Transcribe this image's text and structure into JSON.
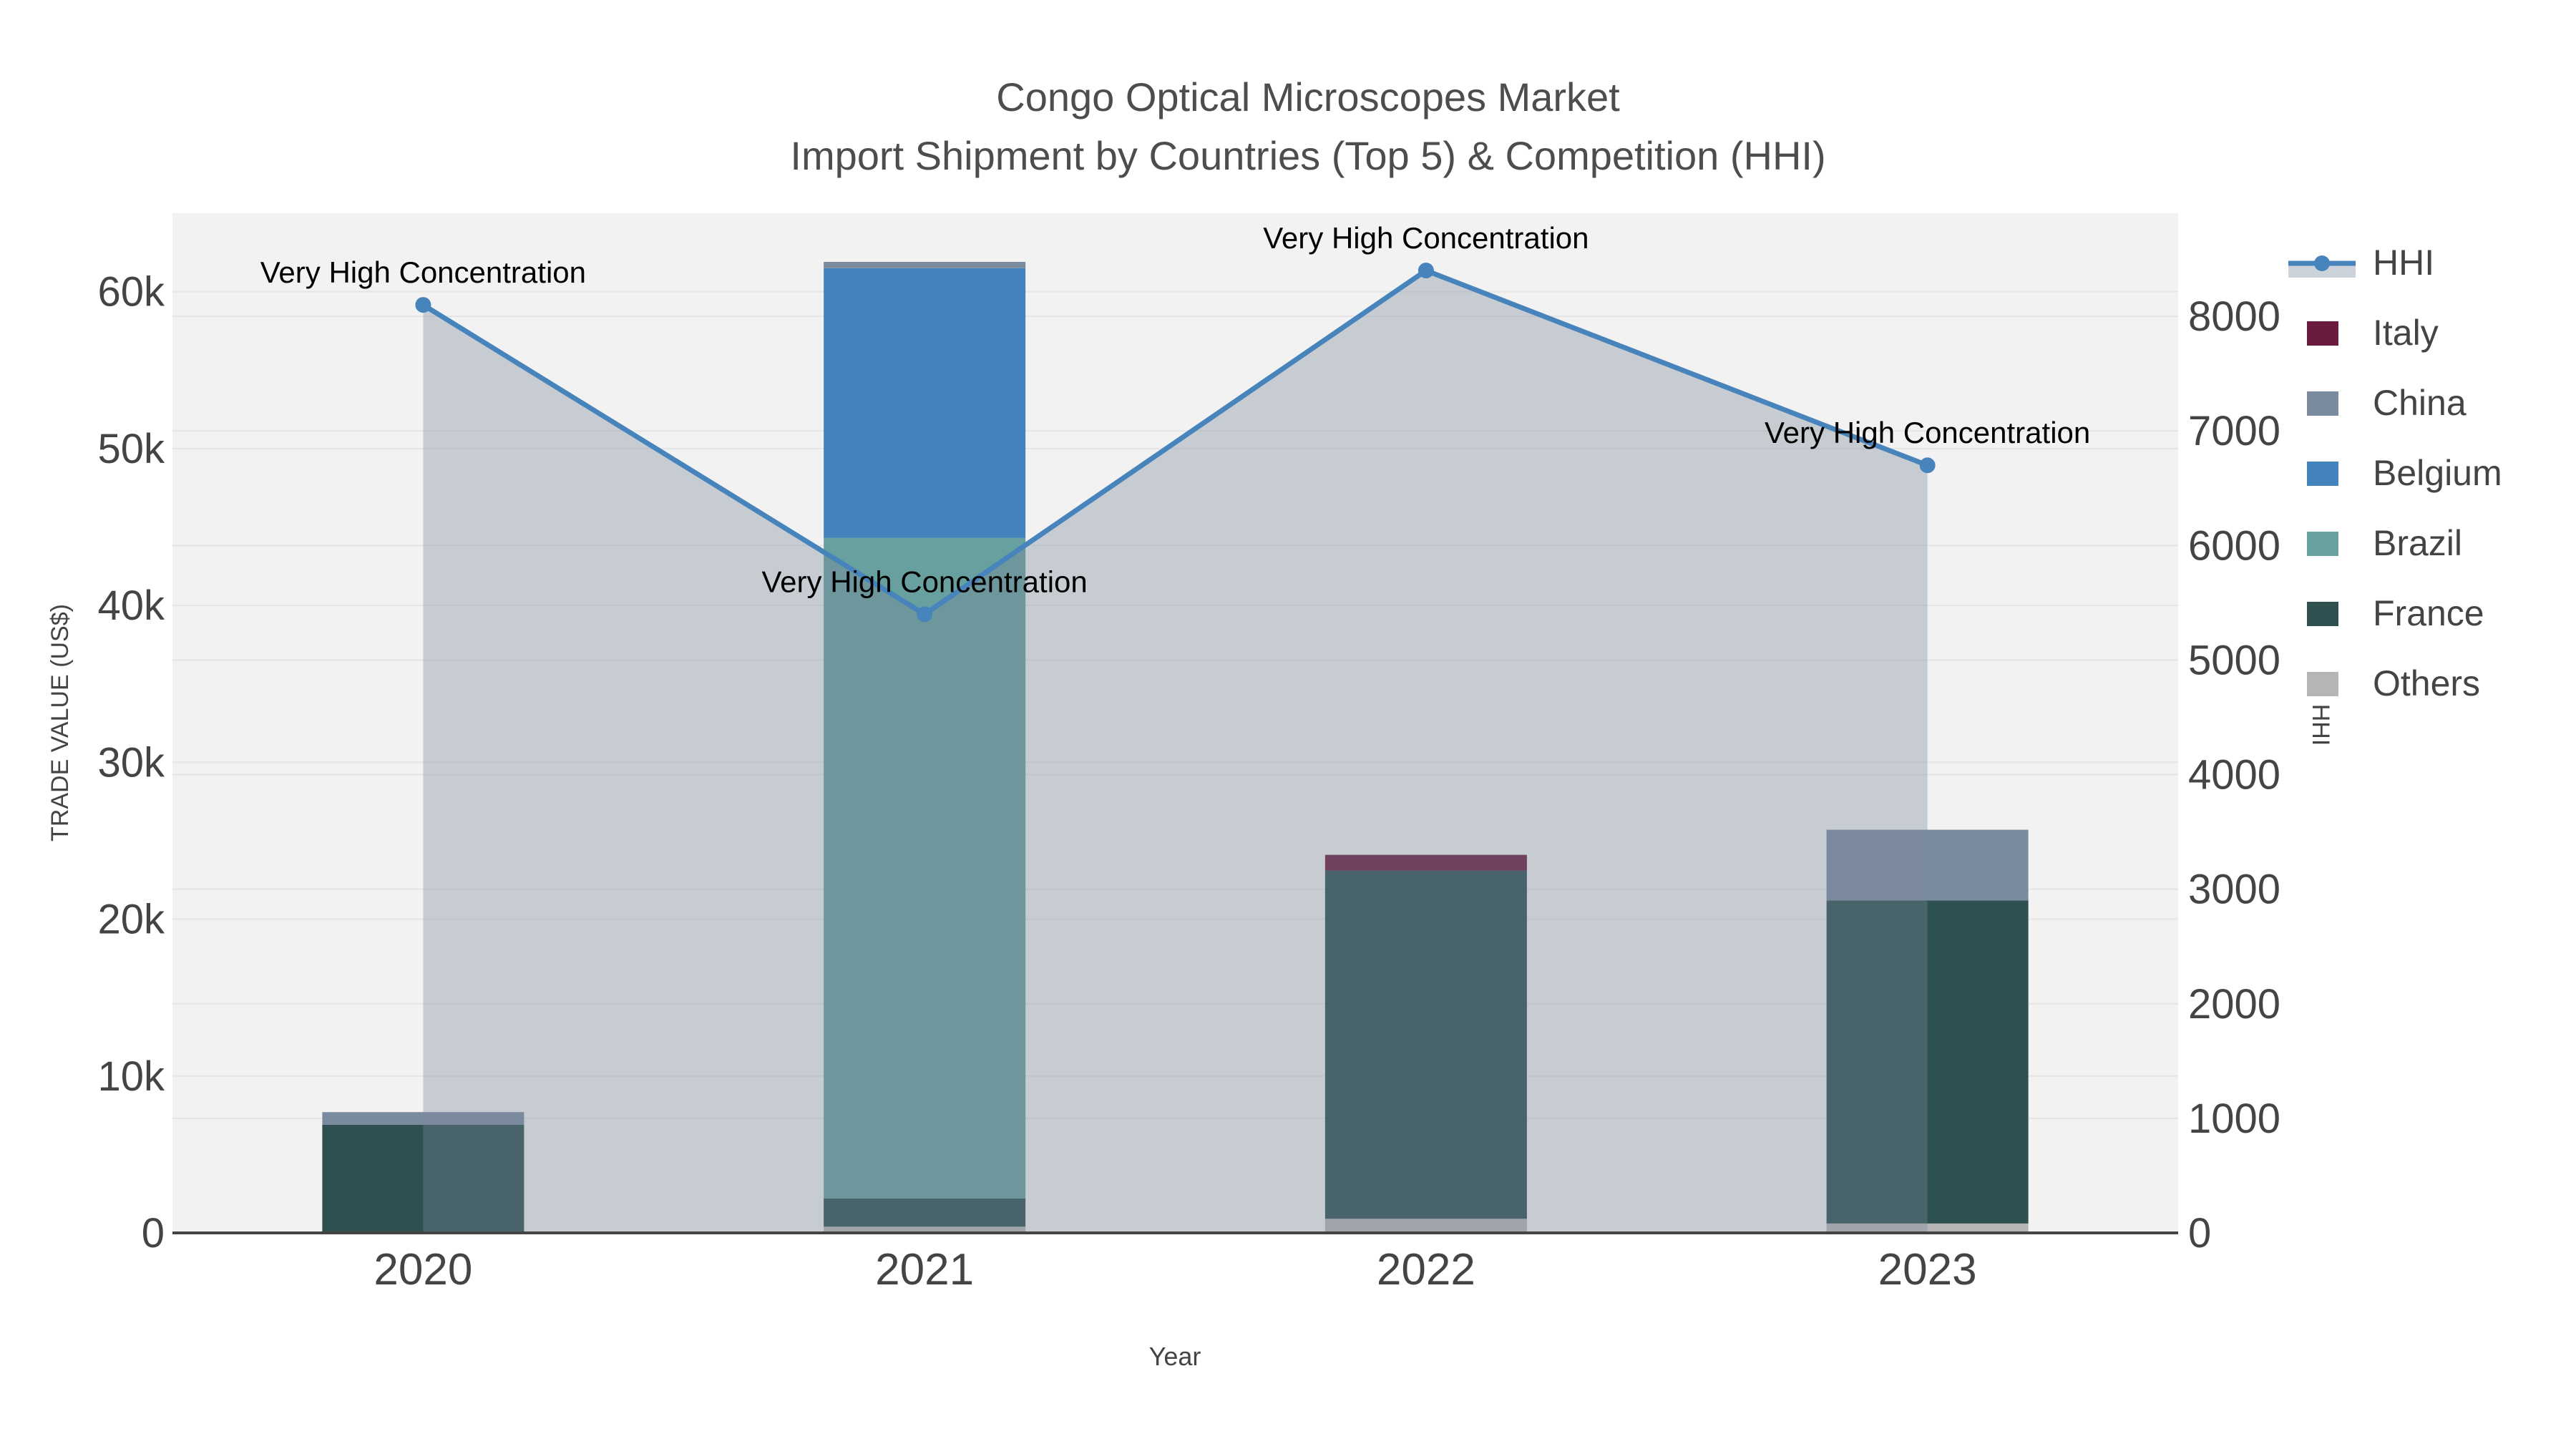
{
  "title": {
    "line1": "Congo Optical Microscopes Market",
    "line2": "Import Shipment by Countries (Top 5) & Competition (HHI)"
  },
  "axes": {
    "x": {
      "title": "Year",
      "tick_labels": [
        "2020",
        "2021",
        "2022",
        "2023"
      ]
    },
    "left": {
      "title": "TRADE VALUE (US$)",
      "tick_labels": [
        "0",
        "10k",
        "20k",
        "30k",
        "40k",
        "50k",
        "60k"
      ],
      "tick_values": [
        0,
        10000,
        20000,
        30000,
        40000,
        50000,
        60000
      ],
      "max": 65000
    },
    "right": {
      "title": "HHI",
      "tick_labels": [
        "0",
        "1000",
        "2000",
        "3000",
        "4000",
        "5000",
        "6000",
        "7000",
        "8000"
      ],
      "tick_values": [
        0,
        1000,
        2000,
        3000,
        4000,
        5000,
        6000,
        7000,
        8000
      ],
      "max": 8900
    }
  },
  "chart_data": {
    "type": "combo: stacked bar (left axis) + line with area fill (right axis)",
    "categories": [
      "2020",
      "2021",
      "2022",
      "2023"
    ],
    "stack_order_bottom_to_top": [
      "Others",
      "France",
      "Brazil",
      "Belgium",
      "China",
      "Italy"
    ],
    "series": [
      {
        "name": "Italy",
        "type": "bar",
        "color": "#6b1c3e",
        "values": [
          0,
          0,
          1000,
          0
        ]
      },
      {
        "name": "China",
        "type": "bar",
        "color": "#7b8b9e",
        "values": [
          800,
          400,
          0,
          4500
        ]
      },
      {
        "name": "Belgium",
        "type": "bar",
        "color": "#4484be",
        "values": [
          0,
          17200,
          0,
          0
        ]
      },
      {
        "name": "Brazil",
        "type": "bar",
        "color": "#67a09f",
        "values": [
          0,
          42100,
          0,
          0
        ]
      },
      {
        "name": "France",
        "type": "bar",
        "color": "#2e5051",
        "values": [
          6900,
          1800,
          22200,
          20600
        ]
      },
      {
        "name": "Others",
        "type": "bar",
        "color": "#b5b5b5",
        "values": [
          0,
          400,
          900,
          600
        ]
      }
    ],
    "line_series": {
      "name": "HHI",
      "axis": "right",
      "color": "#4784bc",
      "area_fill": "rgba(120,135,155,0.35)",
      "values": [
        8100,
        5400,
        8400,
        6700
      ]
    },
    "annotations": [
      {
        "text": "Very High Concentration",
        "category": "2020",
        "value": 8100
      },
      {
        "text": "Very High Concentration",
        "category": "2021",
        "value": 5400
      },
      {
        "text": "Very High Concentration",
        "category": "2022",
        "value": 8400
      },
      {
        "text": "Very High Concentration",
        "category": "2023",
        "value": 6700
      }
    ],
    "ylim_left": [
      0,
      65000
    ],
    "ylim_right": [
      0,
      8900
    ],
    "grid": true,
    "legend_position": "right"
  },
  "legend": {
    "items": [
      {
        "label": "HHI",
        "type": "line",
        "color": "#4784bc",
        "band_color": "#ccd3db"
      },
      {
        "label": "Italy",
        "type": "bar",
        "color": "#6b1c3e"
      },
      {
        "label": "China",
        "type": "bar",
        "color": "#7b8b9e"
      },
      {
        "label": "Belgium",
        "type": "bar",
        "color": "#4484be"
      },
      {
        "label": "Brazil",
        "type": "bar",
        "color": "#67a09f"
      },
      {
        "label": "France",
        "type": "bar",
        "color": "#2e5051"
      },
      {
        "label": "Others",
        "type": "bar",
        "color": "#b5b5b5"
      }
    ]
  },
  "colors": {
    "plot_background": "#f2f2f2",
    "page_background": "#ffffff",
    "gridline": "#e5e5e5",
    "axis_line": "#444444",
    "tick_text": "#444444",
    "title_text": "#4d4d4d",
    "annotation_text": "#000000",
    "hhi_line": "#4784bc",
    "hhi_fill": "rgba(120,135,155,0.35)"
  }
}
